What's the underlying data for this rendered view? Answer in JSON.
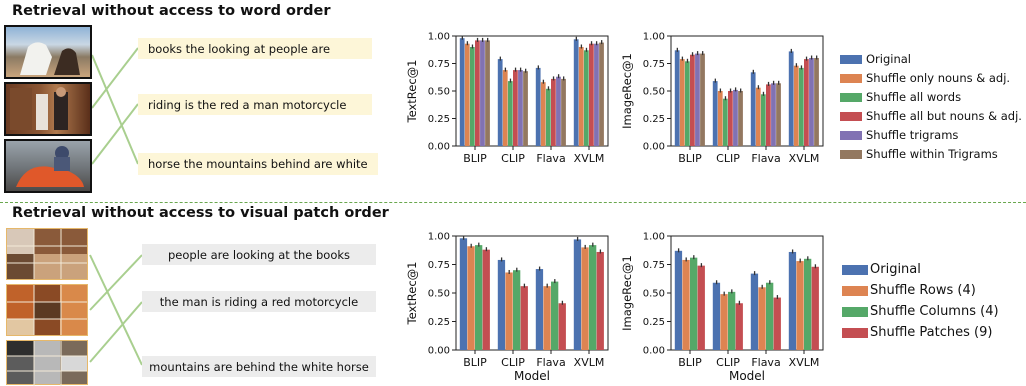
{
  "sections": {
    "top": {
      "title": "Retrieval without access to word order",
      "captions": [
        "books the looking at people are",
        "riding is the red a man motorcycle",
        "horse the mountains behind are white"
      ]
    },
    "bottom": {
      "title": "Retrieval without access to visual patch order",
      "captions": [
        "people are looking at the books",
        "the man is riding a red motorcycle",
        "mountains are behind the white horse"
      ]
    }
  },
  "chart_data": [
    {
      "type": "bar",
      "categories": [
        "BLIP",
        "CLIP",
        "Flava",
        "XVLM"
      ],
      "ylabel": "TextRec@1",
      "xlabel": "",
      "ylim": [
        0,
        1.0
      ],
      "yticks": [
        "0.00",
        "0.25",
        "0.50",
        "0.75",
        "1.00"
      ],
      "series": [
        {
          "name": "Original",
          "values": [
            0.98,
            0.79,
            0.71,
            0.97
          ]
        },
        {
          "name": "Shuffle only nouns & adj.",
          "values": [
            0.93,
            0.69,
            0.58,
            0.9
          ]
        },
        {
          "name": "Shuffle all words",
          "values": [
            0.9,
            0.59,
            0.52,
            0.87
          ]
        },
        {
          "name": "Shuffle all but nouns & adj.",
          "values": [
            0.96,
            0.69,
            0.61,
            0.93
          ]
        },
        {
          "name": "Shuffle trigrams",
          "values": [
            0.96,
            0.69,
            0.63,
            0.93
          ]
        },
        {
          "name": "Shuffle within Trigrams",
          "values": [
            0.96,
            0.68,
            0.61,
            0.94
          ]
        }
      ]
    },
    {
      "type": "bar",
      "categories": [
        "BLIP",
        "CLIP",
        "Flava",
        "XVLM"
      ],
      "ylabel": "ImageRec@1",
      "xlabel": "",
      "ylim": [
        0,
        1.0
      ],
      "yticks": [
        "0.00",
        "0.25",
        "0.50",
        "0.75",
        "1.00"
      ],
      "series": [
        {
          "name": "Original",
          "values": [
            0.87,
            0.59,
            0.67,
            0.86
          ]
        },
        {
          "name": "Shuffle only nouns & adj.",
          "values": [
            0.79,
            0.5,
            0.53,
            0.73
          ]
        },
        {
          "name": "Shuffle all words",
          "values": [
            0.77,
            0.43,
            0.47,
            0.71
          ]
        },
        {
          "name": "Shuffle all but nouns & adj.",
          "values": [
            0.83,
            0.5,
            0.56,
            0.79
          ]
        },
        {
          "name": "Shuffle trigrams",
          "values": [
            0.84,
            0.51,
            0.57,
            0.8
          ]
        },
        {
          "name": "Shuffle within Trigrams",
          "values": [
            0.84,
            0.5,
            0.57,
            0.8
          ]
        }
      ]
    },
    {
      "type": "bar",
      "categories": [
        "BLIP",
        "CLIP",
        "Flava",
        "XVLM"
      ],
      "ylabel": "TextRec@1",
      "xlabel": "Model",
      "ylim": [
        0,
        1.0
      ],
      "yticks": [
        "0.00",
        "0.25",
        "0.50",
        "0.75",
        "1.00"
      ],
      "series": [
        {
          "name": "Original",
          "values": [
            0.98,
            0.79,
            0.71,
            0.97
          ]
        },
        {
          "name": "Shuffle Rows (4)",
          "values": [
            0.91,
            0.68,
            0.56,
            0.9
          ]
        },
        {
          "name": "Shuffle Columns (4)",
          "values": [
            0.92,
            0.7,
            0.6,
            0.92
          ]
        },
        {
          "name": "Shuffle Patches (9)",
          "values": [
            0.88,
            0.56,
            0.41,
            0.86
          ]
        }
      ]
    },
    {
      "type": "bar",
      "categories": [
        "BLIP",
        "CLIP",
        "Flava",
        "XVLM"
      ],
      "ylabel": "ImageRec@1",
      "xlabel": "Model",
      "ylim": [
        0,
        1.0
      ],
      "yticks": [
        "0.00",
        "0.25",
        "0.50",
        "0.75",
        "1.00"
      ],
      "series": [
        {
          "name": "Original",
          "values": [
            0.87,
            0.59,
            0.67,
            0.86
          ]
        },
        {
          "name": "Shuffle Rows (4)",
          "values": [
            0.79,
            0.49,
            0.55,
            0.78
          ]
        },
        {
          "name": "Shuffle Columns (4)",
          "values": [
            0.81,
            0.51,
            0.59,
            0.8
          ]
        },
        {
          "name": "Shuffle Patches (9)",
          "values": [
            0.74,
            0.41,
            0.46,
            0.73
          ]
        }
      ]
    }
  ],
  "legends": [
    [
      "Original",
      "Shuffle only nouns & adj.",
      "Shuffle all words",
      "Shuffle all but nouns & adj.",
      "Shuffle trigrams",
      "Shuffle within Trigrams"
    ],
    [
      "Original",
      "Shuffle Rows (4)",
      "Shuffle Columns (4)",
      "Shuffle Patches (9)"
    ]
  ],
  "colors": {
    "top_series": [
      "#4c72b0",
      "#dd8452",
      "#55a868",
      "#c44e52",
      "#8172b3",
      "#937860"
    ],
    "bottom_series": [
      "#4c72b0",
      "#dd8452",
      "#55a868",
      "#c44e52"
    ],
    "divider": "#6aa84f",
    "link_line": "#a9cf8f",
    "caption_top_bg": "#fdf6d8",
    "caption_bottom_bg": "#ececec"
  }
}
